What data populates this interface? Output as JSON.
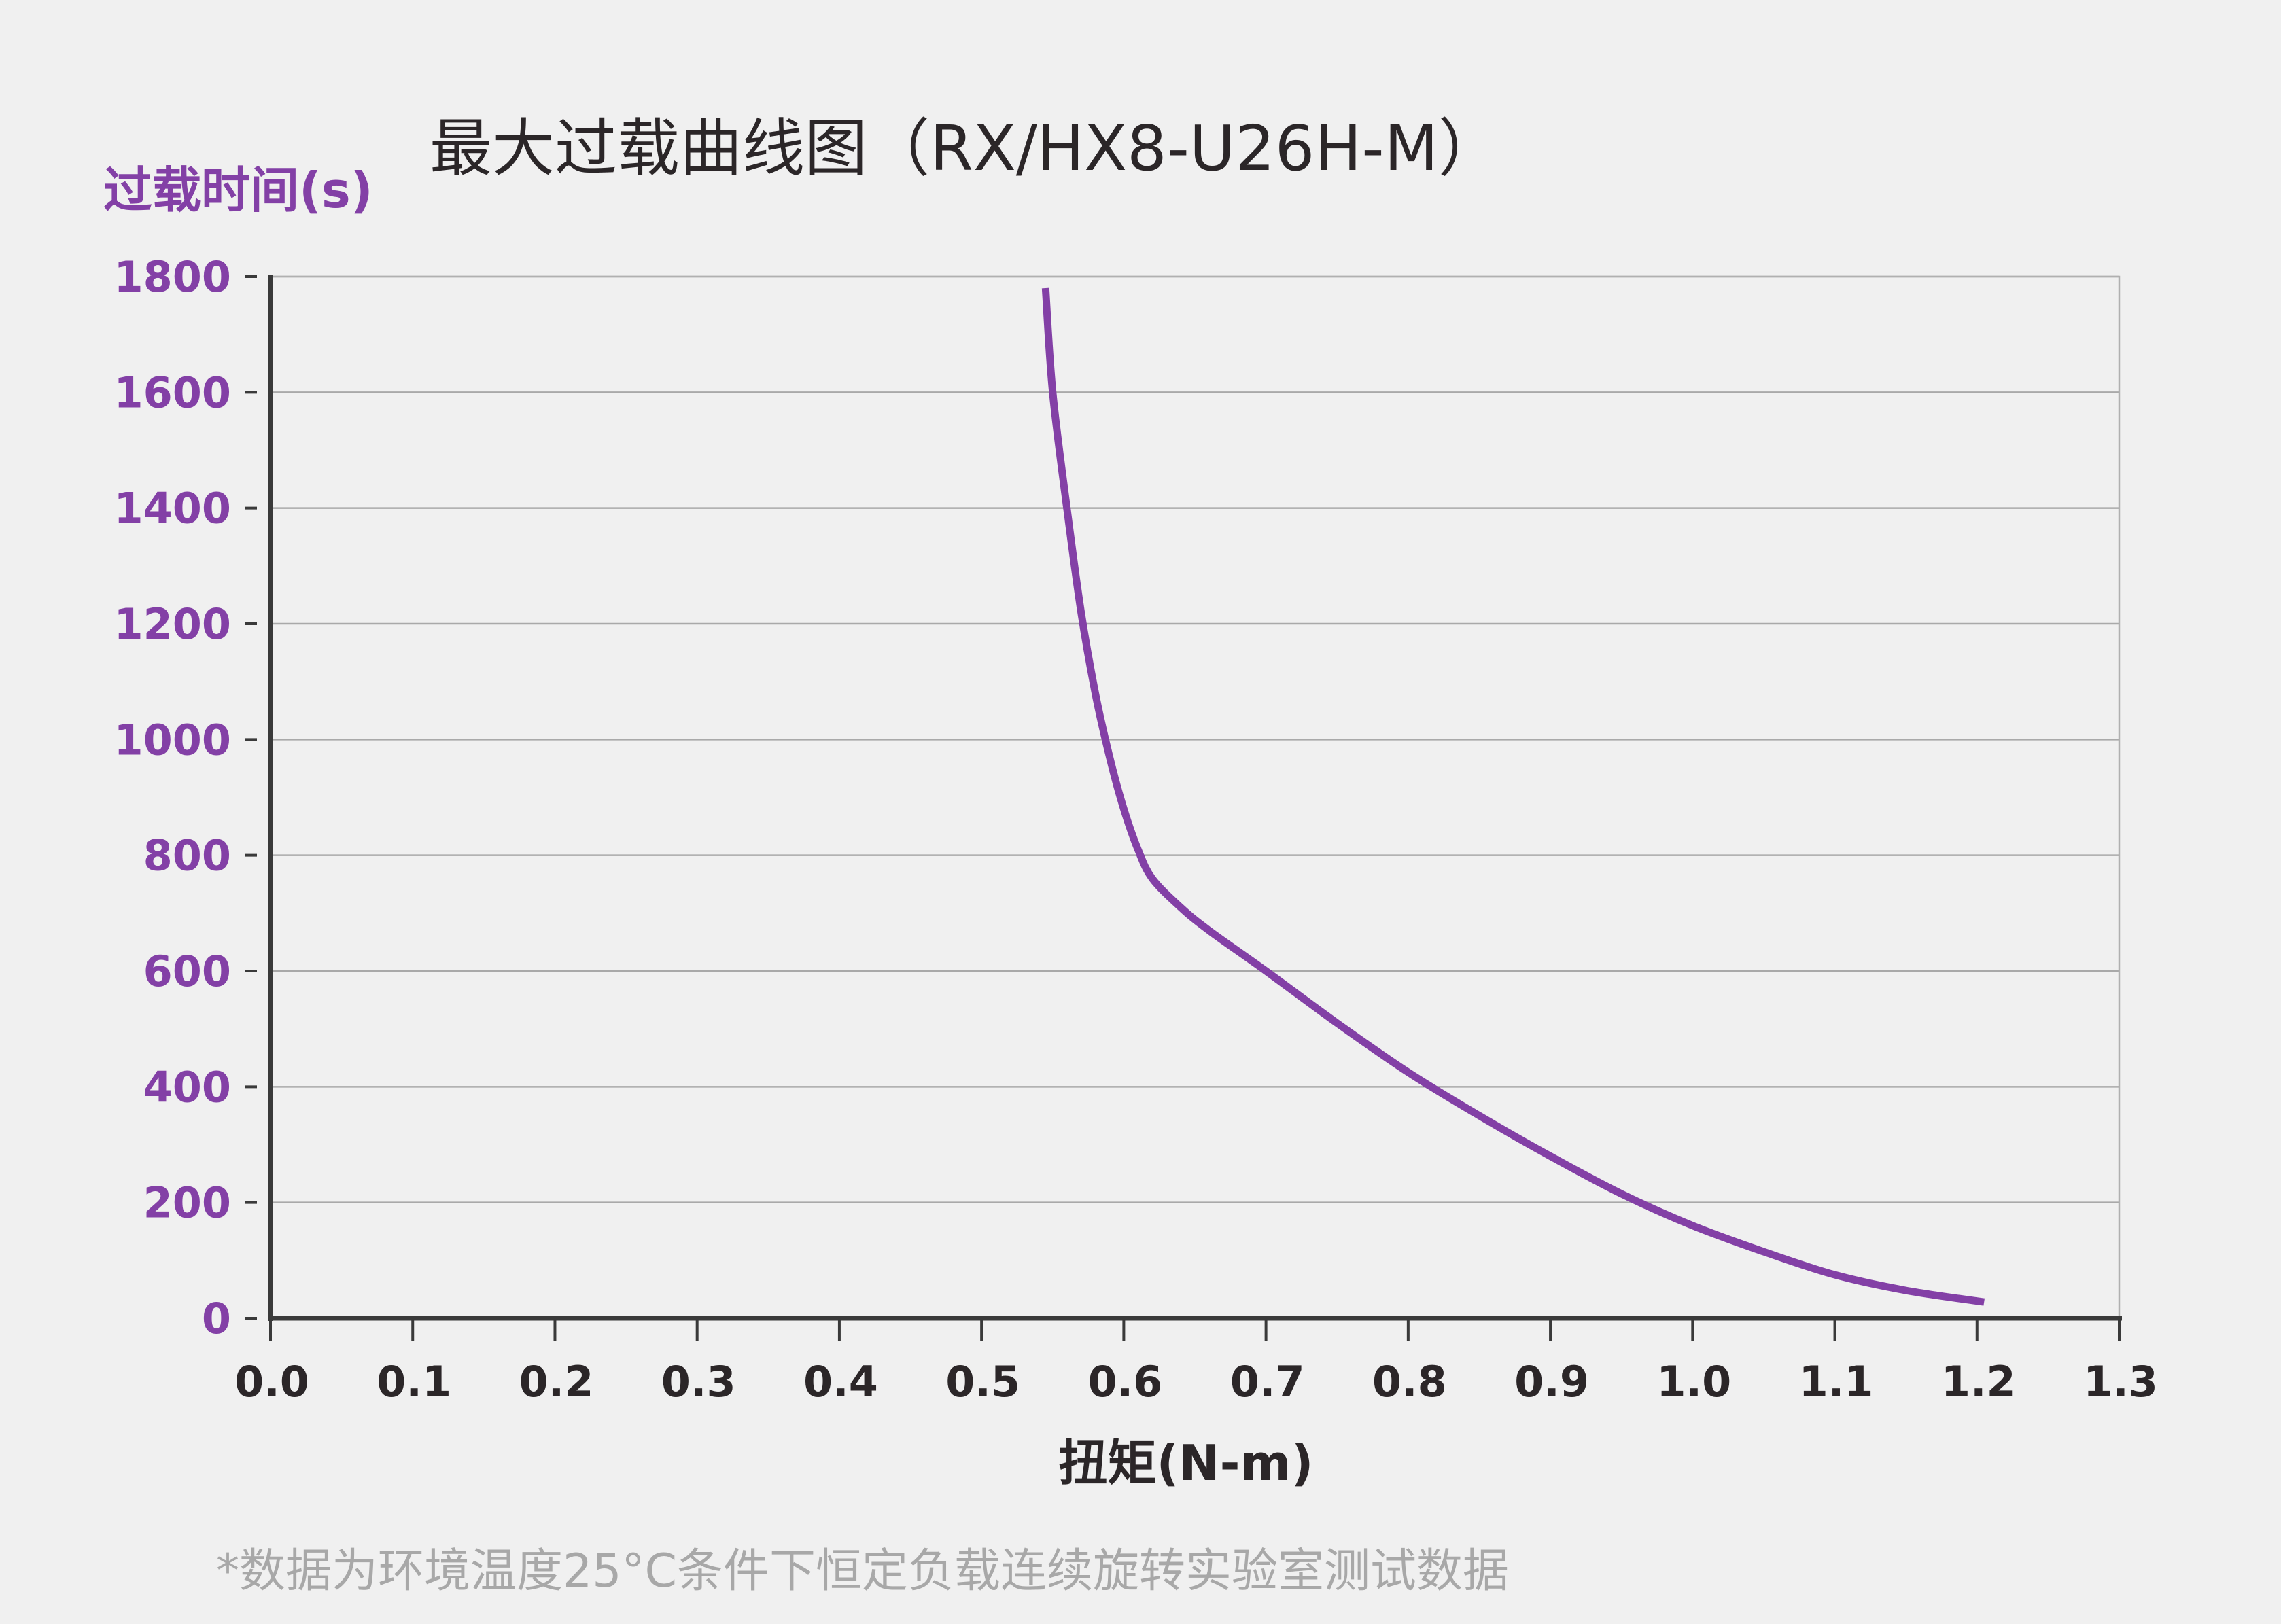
{
  "chart_data": {
    "type": "line",
    "title": "最大过载曲线图（RX/HX8-U26H-M）",
    "xlabel": "扭矩(N-m)",
    "ylabel": "过载时间(s)",
    "xlim": [
      0,
      1.3
    ],
    "ylim": [
      0,
      1800
    ],
    "x_ticks": [
      "0.0",
      "0.1",
      "0.2",
      "0.3",
      "0.4",
      "0.5",
      "0.6",
      "0.7",
      "0.8",
      "0.9",
      "1.0",
      "1.1",
      "1.2",
      "1.3"
    ],
    "y_ticks": [
      "0",
      "200",
      "400",
      "600",
      "800",
      "1000",
      "1200",
      "1400",
      "1600",
      "1800"
    ],
    "grid": true,
    "series": [
      {
        "color": "#8340a6",
        "x": [
          0.545,
          0.55,
          0.56,
          0.57,
          0.58,
          0.59,
          0.6,
          0.61,
          0.62,
          0.64,
          0.66,
          0.7,
          0.75,
          0.8,
          0.85,
          0.9,
          0.95,
          1.0,
          1.05,
          1.1,
          1.15,
          1.205
        ],
        "y": [
          1780,
          1600,
          1400,
          1220,
          1080,
          970,
          880,
          810,
          760,
          710,
          670,
          600,
          510,
          425,
          350,
          280,
          215,
          160,
          115,
          75,
          48,
          28
        ]
      }
    ]
  },
  "footnote": "*数据为环境温度25°C条件下恒定负载连续旋转实验室测试数据",
  "colors": {
    "accent": "#8340a6",
    "text": "#2b2628",
    "grid": "#a9a9a9",
    "note": "#a8a8a8"
  }
}
